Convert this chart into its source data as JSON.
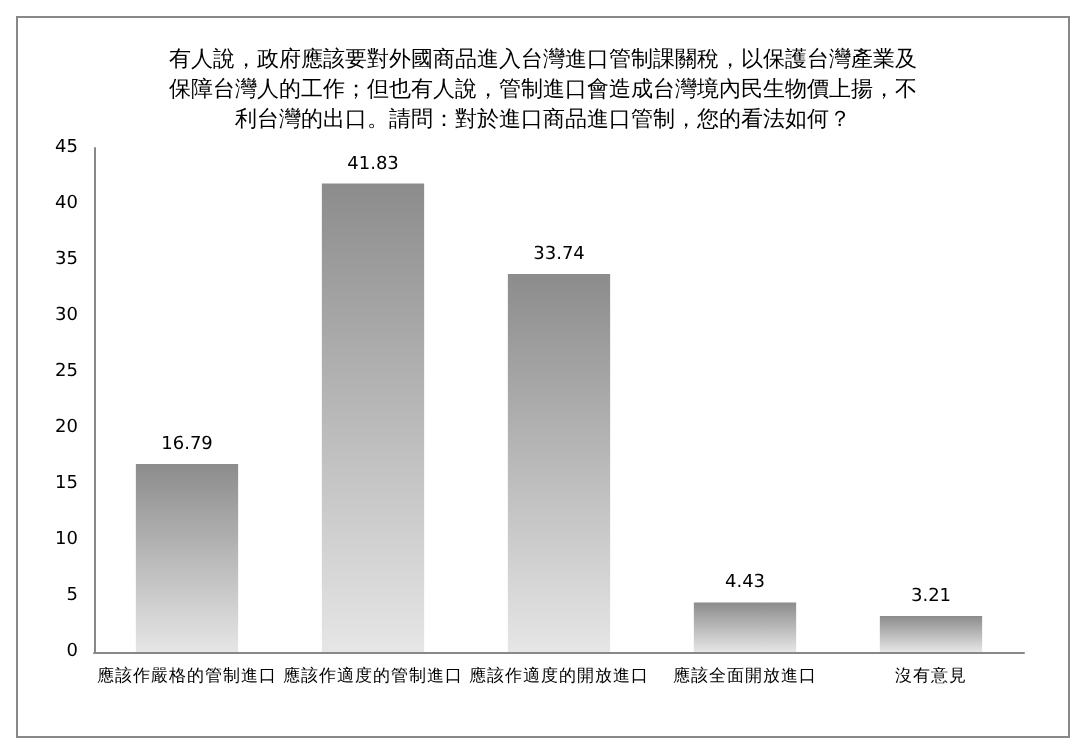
{
  "chart_data": {
    "type": "bar",
    "title": "有人說，政府應該要對外國商品進入台灣進口管制課關稅，以保護台灣產業及保障台灣人的工作；但也有人說，管制進口會造成台灣境內民生物價上揚，不利台灣的出口。請問：對於進口商品進口管制，您的看法如何？",
    "categories": [
      "應該作嚴格的管制進口",
      "應該作適度的管制進口",
      "應該作適度的開放進口",
      "應該全面開放進口",
      "沒有意見"
    ],
    "values": [
      16.79,
      41.83,
      33.74,
      4.43,
      3.21
    ],
    "color": "#8c8c8c",
    "ylim": [
      0,
      45
    ],
    "yticks": [
      0,
      5,
      10,
      15,
      20,
      25,
      30,
      35,
      40,
      45
    ],
    "grid": false,
    "data_labels": true
  }
}
